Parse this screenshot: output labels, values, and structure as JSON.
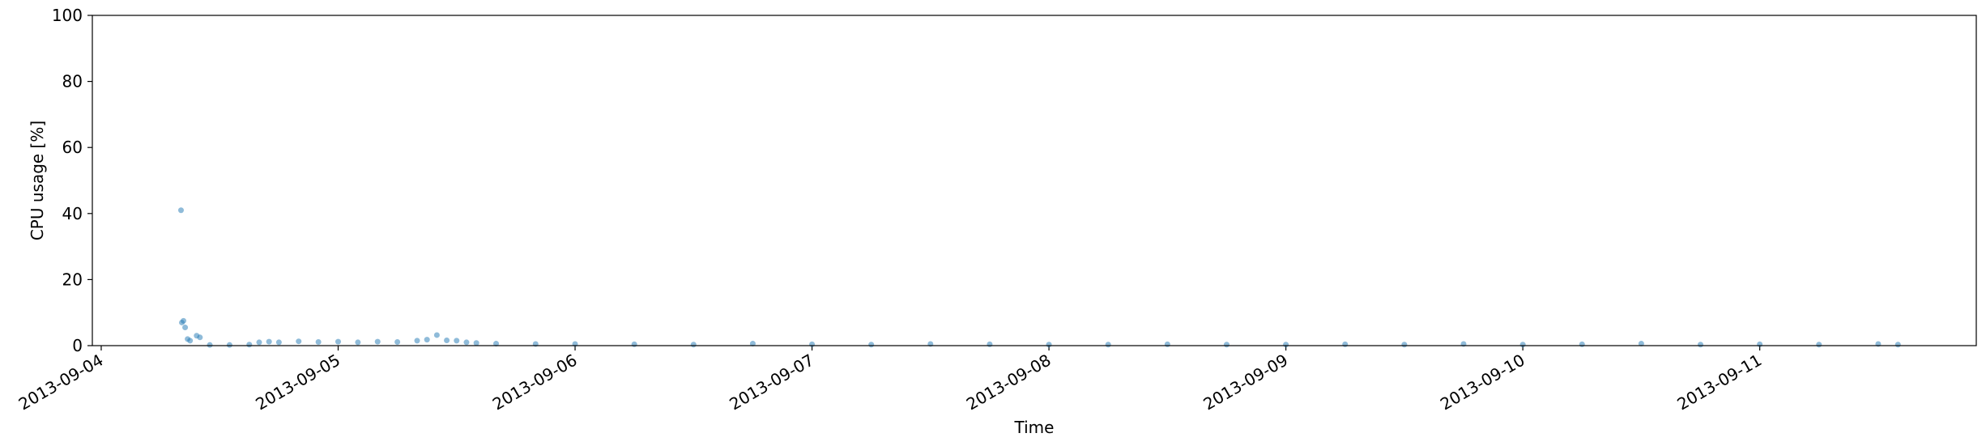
{
  "chart_data": {
    "type": "scatter",
    "xlabel": "Time",
    "ylabel": "CPU usage [%]",
    "color": "#1f77b4",
    "xlim": [
      "2013-09-03 23:06",
      "2013-09-11 21:56"
    ],
    "ylim": [
      0,
      100
    ],
    "xticks": [
      "2013-09-04",
      "2013-09-05",
      "2013-09-06",
      "2013-09-07",
      "2013-09-08",
      "2013-09-09",
      "2013-09-10",
      "2013-09-11"
    ],
    "yticks": [
      0,
      20,
      40,
      60,
      80,
      100
    ],
    "x": [
      "2013-09-04 08:05",
      "2013-09-04 08:10",
      "2013-09-04 08:20",
      "2013-09-04 08:30",
      "2013-09-04 08:45",
      "2013-09-04 09:00",
      "2013-09-04 09:40",
      "2013-09-04 10:00",
      "2013-09-04 11:00",
      "2013-09-04 13:00",
      "2013-09-04 15:00",
      "2013-09-04 16:00",
      "2013-09-04 17:00",
      "2013-09-04 18:00",
      "2013-09-04 20:00",
      "2013-09-04 22:00",
      "2013-09-05 00:00",
      "2013-09-05 02:00",
      "2013-09-05 04:00",
      "2013-09-05 06:00",
      "2013-09-05 08:00",
      "2013-09-05 09:00",
      "2013-09-05 10:00",
      "2013-09-05 11:00",
      "2013-09-05 12:00",
      "2013-09-05 13:00",
      "2013-09-05 14:00",
      "2013-09-05 16:00",
      "2013-09-05 20:00",
      "2013-09-06 00:00",
      "2013-09-06 06:00",
      "2013-09-06 12:00",
      "2013-09-06 18:00",
      "2013-09-07 00:00",
      "2013-09-07 06:00",
      "2013-09-07 12:00",
      "2013-09-07 18:00",
      "2013-09-08 00:00",
      "2013-09-08 06:00",
      "2013-09-08 12:00",
      "2013-09-08 18:00",
      "2013-09-09 00:00",
      "2013-09-09 06:00",
      "2013-09-09 12:00",
      "2013-09-09 18:00",
      "2013-09-10 00:00",
      "2013-09-10 06:00",
      "2013-09-10 12:00",
      "2013-09-10 18:00",
      "2013-09-11 00:00",
      "2013-09-11 06:00",
      "2013-09-11 12:00",
      "2013-09-11 14:00"
    ],
    "values": [
      41,
      7,
      7.5,
      5.5,
      2,
      1.5,
      3,
      2.5,
      0.2,
      0.2,
      0.3,
      1,
      1.2,
      1,
      1.3,
      1.1,
      1.2,
      1,
      1.2,
      1.1,
      1.5,
      1.8,
      3.2,
      1.6,
      1.5,
      1,
      0.8,
      0.6,
      0.5,
      0.5,
      0.4,
      0.3,
      0.6,
      0.4,
      0.3,
      0.5,
      0.4,
      0.3,
      0.3,
      0.4,
      0.3,
      0.3,
      0.4,
      0.3,
      0.5,
      0.3,
      0.4,
      0.6,
      0.3,
      0.4,
      0.3,
      0.5,
      0.3
    ]
  }
}
